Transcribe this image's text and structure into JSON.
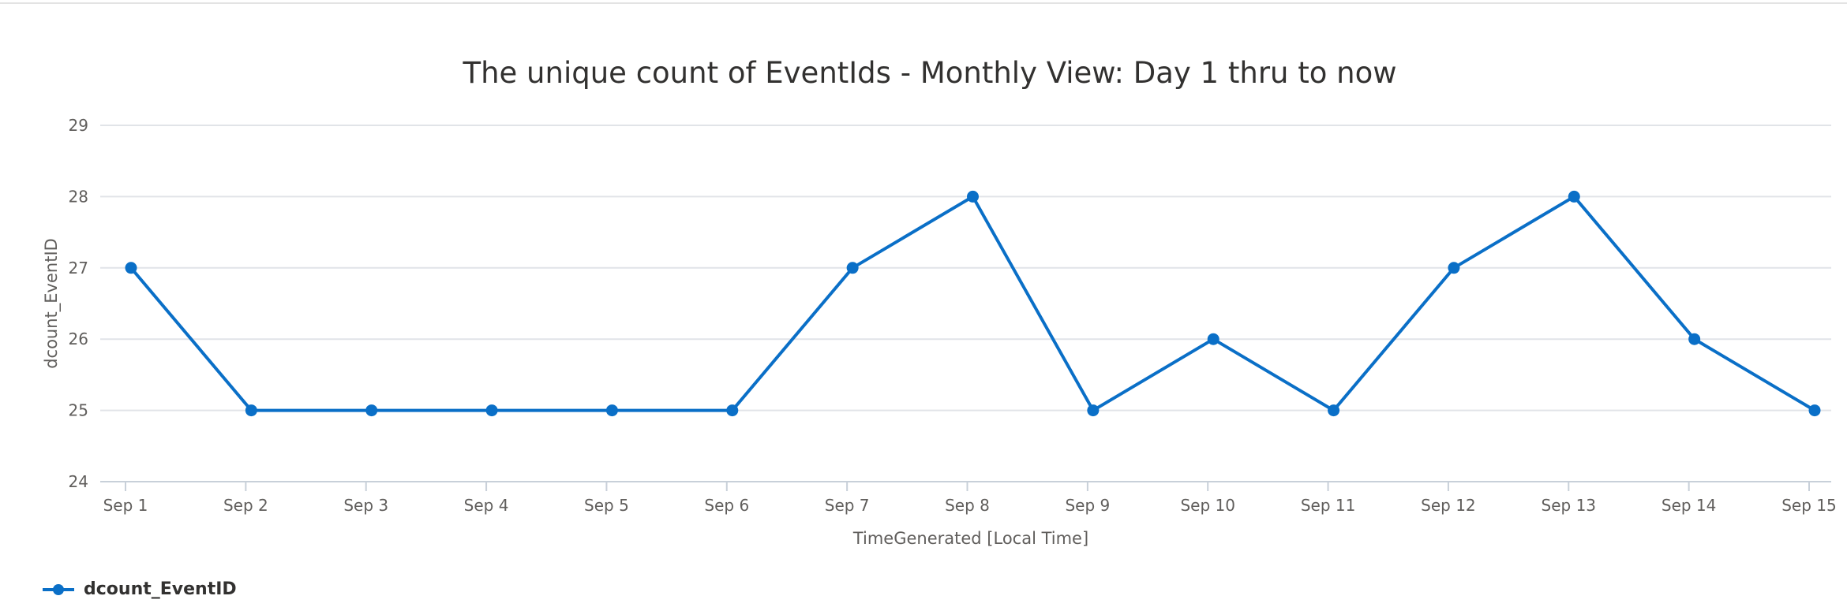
{
  "chart_data": {
    "type": "line",
    "title": "The unique count of EventIds - Monthly View: Day 1 thru to now",
    "xlabel": "TimeGenerated [Local Time]",
    "ylabel": "dcount_EventID",
    "categories": [
      "Sep 1",
      "Sep 2",
      "Sep 3",
      "Sep 4",
      "Sep 5",
      "Sep 6",
      "Sep 7",
      "Sep 8",
      "Sep 9",
      "Sep 10",
      "Sep 11",
      "Sep 12",
      "Sep 13",
      "Sep 14",
      "Sep 15"
    ],
    "series": [
      {
        "name": "dcount_EventID",
        "values": [
          27,
          25,
          25,
          25,
          25,
          25,
          27,
          28,
          25,
          26,
          25,
          27,
          28,
          26,
          25
        ],
        "color": "#0a6fc7"
      }
    ],
    "ylim": [
      24,
      29
    ],
    "yticks": [
      "24",
      "25",
      "26",
      "27",
      "28",
      "29"
    ],
    "grid": true,
    "legend": "bottom-left"
  }
}
